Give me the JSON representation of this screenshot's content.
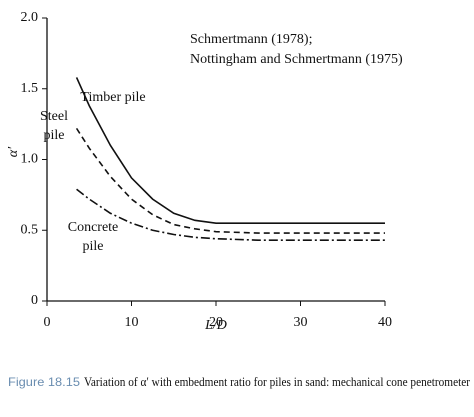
{
  "chart_data": {
    "type": "line",
    "annotations": [
      "Schmertmann (1978);",
      "Nottingham and Schmertmann (1975)"
    ],
    "x_label": "L/D",
    "y_label": "α′",
    "caption_number": "Figure 18.15",
    "caption": "Variation of α′ with embedment ratio for piles in sand: mechanical cone penetrometer",
    "x": [
      3.5,
      5,
      7.5,
      10,
      12.5,
      15,
      17.5,
      20,
      25,
      30,
      35,
      40
    ],
    "series": [
      {
        "name": "Timber pile",
        "color": "#111111",
        "style": "solid",
        "values": [
          1.58,
          1.38,
          1.1,
          0.87,
          0.72,
          0.62,
          0.57,
          0.55,
          0.55,
          0.55,
          0.55,
          0.55
        ]
      },
      {
        "name": "Steel pile",
        "color": "#111111",
        "style": "dashed",
        "values": [
          1.22,
          1.08,
          0.88,
          0.72,
          0.61,
          0.54,
          0.51,
          0.49,
          0.48,
          0.48,
          0.48,
          0.48
        ]
      },
      {
        "name": "Concrete pile",
        "color": "#111111",
        "style": "dashdot",
        "values": [
          0.79,
          0.72,
          0.62,
          0.55,
          0.5,
          0.47,
          0.45,
          0.44,
          0.43,
          0.43,
          0.43,
          0.43
        ]
      }
    ],
    "xlim": [
      0,
      40
    ],
    "xticks": [
      0,
      10,
      20,
      30,
      40
    ],
    "ylim": [
      0,
      2
    ],
    "yticks": [
      0,
      0.5,
      {
        "value": 1,
        "label": "1.0"
      },
      1.5,
      {
        "value": 2,
        "label": "2.0"
      }
    ],
    "grid": false
  }
}
